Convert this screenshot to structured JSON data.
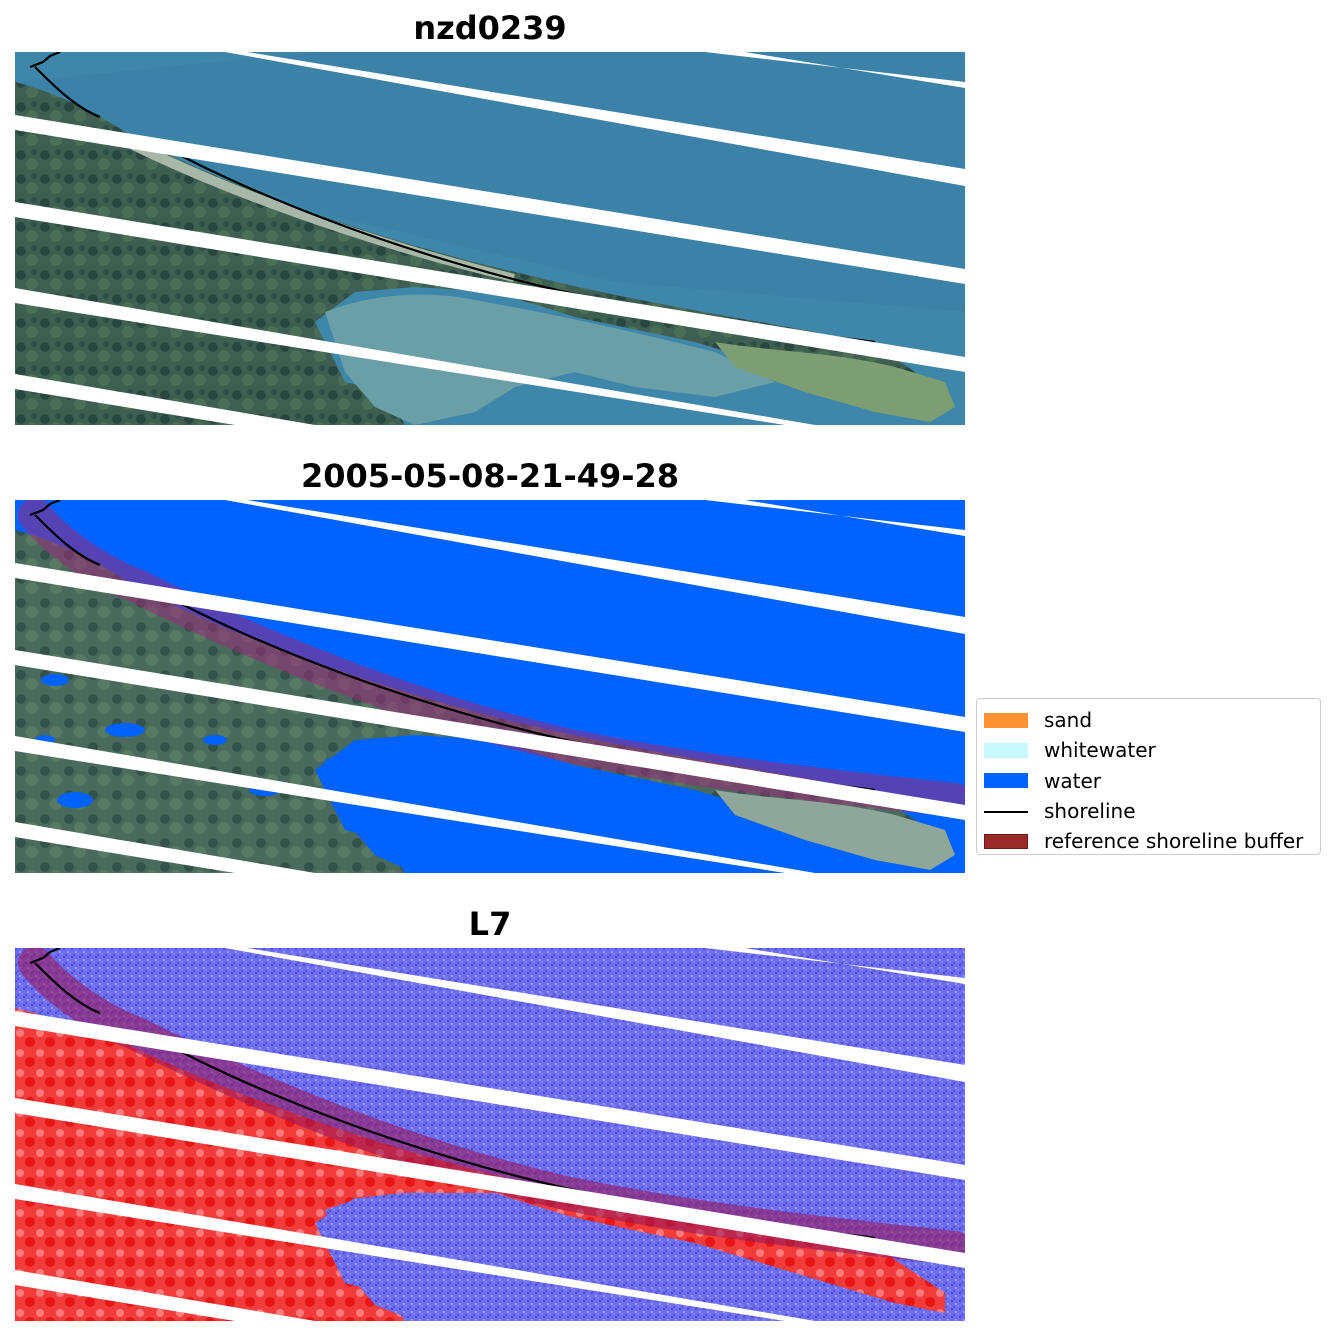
{
  "panels": [
    {
      "title": "nzd0239",
      "style": "rgb"
    },
    {
      "title": "2005-05-08-21-49-28",
      "style": "classified"
    },
    {
      "title": "L7",
      "style": "index"
    }
  ],
  "legend": {
    "items": [
      {
        "label": "sand",
        "color": "#ff9333",
        "kind": "patch"
      },
      {
        "label": "whitewater",
        "color": "#c8f8ff",
        "kind": "patch"
      },
      {
        "label": "water",
        "color": "#0062ff",
        "kind": "patch"
      },
      {
        "label": "shoreline",
        "color": "#000000",
        "kind": "line"
      },
      {
        "label": "reference shoreline buffer",
        "color": "#9a2a2a",
        "kind": "patch"
      }
    ]
  }
}
